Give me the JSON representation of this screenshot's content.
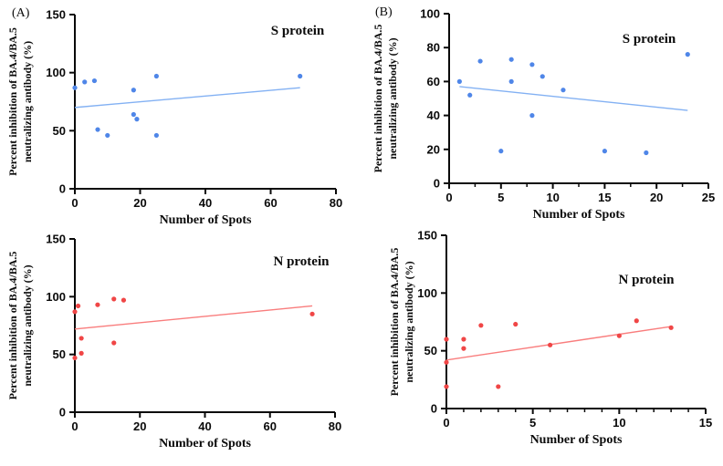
{
  "figure": {
    "background": "#ffffff",
    "panel_labels": [
      "(A)",
      "(B)"
    ]
  },
  "chart_data": [
    {
      "id": "panel-a-s-protein",
      "type": "scatter",
      "panel_label": "(A)",
      "title": "S protein",
      "xlabel": "Number of Spots",
      "ylabel": "Percent inhibition of BA.4/BA.5 neutralizing antibody (%)",
      "ylabel_lines": [
        "Percent inhibition of BA.4/BA.5",
        "neutralizing antibody (%)"
      ],
      "xlim": [
        0,
        80
      ],
      "ylim": [
        0,
        150
      ],
      "xticks": [
        0,
        20,
        40,
        60,
        80
      ],
      "yticks": [
        0,
        50,
        100,
        150
      ],
      "xminorticks": [],
      "grid": false,
      "legend": null,
      "points": [
        [
          0,
          87
        ],
        [
          3,
          92
        ],
        [
          6,
          93
        ],
        [
          7,
          51
        ],
        [
          10,
          46
        ],
        [
          18,
          85
        ],
        [
          18,
          64
        ],
        [
          19,
          60
        ],
        [
          25,
          97
        ],
        [
          25,
          46
        ],
        [
          69,
          97
        ]
      ],
      "trendline": {
        "x1": 0,
        "y1": 70,
        "x2": 69,
        "y2": 87
      },
      "point_color": "#4f86e8",
      "trend_color": "#83b1f3",
      "axis_color": "#0a0a0a"
    },
    {
      "id": "panel-b-s-protein",
      "type": "scatter",
      "panel_label": "(B)",
      "title": "S protein",
      "xlabel": "Number of Spots",
      "ylabel": "Percent inhibition of BA.4/BA.5 neutralizing antibody (%)",
      "ylabel_lines": [
        "Percent inhibition of BA.4/BA.5",
        "neutralizing antibody (%)"
      ],
      "xlim": [
        0,
        25
      ],
      "ylim": [
        0,
        100
      ],
      "xticks": [
        0,
        5,
        10,
        15,
        20,
        25
      ],
      "yticks": [
        0,
        20,
        40,
        60,
        80,
        100
      ],
      "xminorticks": [
        2.5,
        7.5,
        12.5,
        17.5,
        22.5
      ],
      "grid": false,
      "legend": null,
      "points": [
        [
          1,
          60
        ],
        [
          2,
          52
        ],
        [
          3,
          72
        ],
        [
          5,
          19
        ],
        [
          6,
          73
        ],
        [
          6,
          60
        ],
        [
          8,
          70
        ],
        [
          8,
          40
        ],
        [
          9,
          63
        ],
        [
          11,
          55
        ],
        [
          15,
          19
        ],
        [
          19,
          18
        ],
        [
          23,
          76
        ]
      ],
      "trendline": {
        "x1": 1,
        "y1": 57,
        "x2": 23,
        "y2": 43
      },
      "point_color": "#4f86e8",
      "trend_color": "#83b1f3",
      "axis_color": "#0a0a0a"
    },
    {
      "id": "panel-a-n-protein",
      "type": "scatter",
      "panel_label": "",
      "title": "N protein",
      "xlabel": "Number of Spots",
      "ylabel": "Percent inhibition of BA.4/BA.5 neutralizing antibody (%)",
      "ylabel_lines": [
        "Percent inhibition of BA.4/BA.5",
        "neutralizing antibody (%)"
      ],
      "xlim": [
        0,
        80
      ],
      "ylim": [
        0,
        150
      ],
      "xticks": [
        0,
        20,
        40,
        60,
        80
      ],
      "yticks": [
        0,
        50,
        100,
        150
      ],
      "xminorticks": [],
      "grid": false,
      "legend": null,
      "points": [
        [
          0,
          87
        ],
        [
          0,
          47
        ],
        [
          1,
          92
        ],
        [
          2,
          64
        ],
        [
          2,
          51
        ],
        [
          7,
          93
        ],
        [
          12,
          98
        ],
        [
          12,
          60
        ],
        [
          15,
          97
        ],
        [
          73,
          85
        ]
      ],
      "trendline": {
        "x1": 0,
        "y1": 72,
        "x2": 73,
        "y2": 92
      },
      "point_color": "#f04646",
      "trend_color": "#f97d7d",
      "axis_color": "#0a0a0a"
    },
    {
      "id": "panel-b-n-protein",
      "type": "scatter",
      "panel_label": "",
      "title": "N protein",
      "xlabel": "Number of Spots",
      "ylabel": "Percent inhibition of BA.4/BA.5 neutralizing antibody (%)",
      "ylabel_lines": [
        "Percent inhibition of BA.4/BA.5",
        "neutralizing antibody (%)"
      ],
      "xlim": [
        0,
        15
      ],
      "ylim": [
        0,
        150
      ],
      "xticks": [
        0,
        5,
        10,
        15
      ],
      "yticks": [
        0,
        50,
        100,
        150
      ],
      "xminorticks": [
        1,
        2,
        3,
        4,
        6,
        7,
        8,
        9,
        11,
        12,
        13,
        14
      ],
      "grid": false,
      "legend": null,
      "points": [
        [
          0,
          60
        ],
        [
          0,
          40
        ],
        [
          0,
          19
        ],
        [
          1,
          60
        ],
        [
          1,
          52
        ],
        [
          2,
          72
        ],
        [
          3,
          19
        ],
        [
          4,
          73
        ],
        [
          6,
          55
        ],
        [
          10,
          63
        ],
        [
          11,
          76
        ],
        [
          13,
          70
        ]
      ],
      "trendline": {
        "x1": 0,
        "y1": 42,
        "x2": 13,
        "y2": 71
      },
      "point_color": "#f04646",
      "trend_color": "#f97d7d",
      "axis_color": "#0a0a0a"
    }
  ]
}
